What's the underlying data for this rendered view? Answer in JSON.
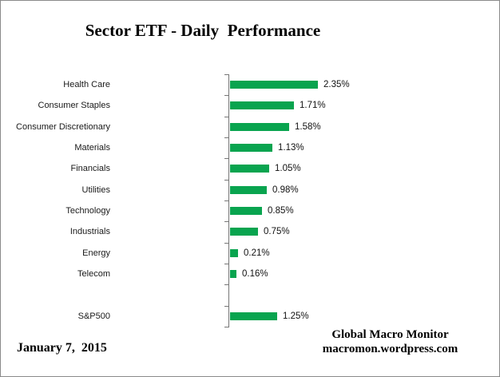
{
  "chart_data": {
    "type": "bar",
    "orientation": "horizontal",
    "title": "Sector ETF - Daily  Performance",
    "categories": [
      "Health Care",
      "Consumer Staples",
      "Consumer Discretionary",
      "Materials",
      "Financials",
      "Utilities",
      "Technology",
      "Industrials",
      "Energy",
      "Telecom",
      "",
      "S&P500"
    ],
    "values": [
      2.35,
      1.71,
      1.58,
      1.13,
      1.05,
      0.98,
      0.85,
      0.75,
      0.21,
      0.16,
      null,
      1.25
    ],
    "value_labels": [
      "2.35%",
      "1.71%",
      "1.58%",
      "1.13%",
      "1.05%",
      "0.98%",
      "0.85%",
      "0.75%",
      "0.21%",
      "0.16%",
      "",
      "1.25%"
    ],
    "xlim": [
      0,
      2.5
    ],
    "grid": false,
    "legend": false,
    "bar_color": "#09A44F",
    "axis_color": "#767676",
    "text_color": "#111111"
  },
  "footer": {
    "date": "January 7,  2015",
    "attribution_line1": "Global Macro Monitor",
    "attribution_line2": "macromon.wordpress.com"
  }
}
